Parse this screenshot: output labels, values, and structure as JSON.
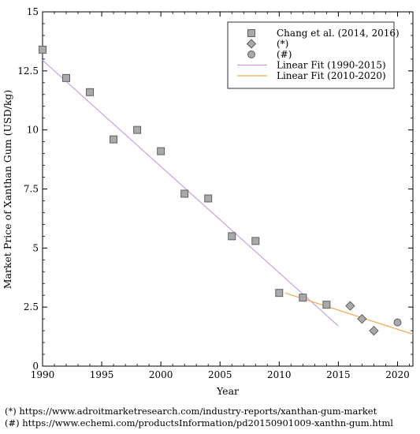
{
  "chart_data": {
    "type": "scatter",
    "title": "",
    "xlabel": "Year",
    "ylabel": "Market Price of Xanthan Gum (USD/kg)",
    "xlim": [
      1990,
      2021.3
    ],
    "ylim": [
      0,
      15
    ],
    "x_ticks": [
      1990,
      1995,
      2000,
      2005,
      2010,
      2015,
      2020
    ],
    "y_ticks": [
      0,
      2.5,
      5,
      7.5,
      10,
      12.5,
      15
    ],
    "y_tick_labels": [
      "0",
      "2.5",
      "5",
      "7.5",
      "10",
      "12.5",
      "15"
    ],
    "grid": false,
    "legend_position": "top-right",
    "series": [
      {
        "name": "Chang et al. (2014, 2016)",
        "marker": "square",
        "color": "#a9a9a9",
        "points": [
          [
            1990,
            13.4
          ],
          [
            1992,
            12.2
          ],
          [
            1994,
            11.6
          ],
          [
            1996,
            9.6
          ],
          [
            1998,
            10.0
          ],
          [
            2000,
            9.1
          ],
          [
            2002,
            7.3
          ],
          [
            2004,
            7.1
          ],
          [
            2006,
            5.5
          ],
          [
            2008,
            5.3
          ],
          [
            2010,
            3.1
          ],
          [
            2012,
            2.9
          ],
          [
            2014,
            2.6
          ]
        ]
      },
      {
        "name": "(*)",
        "marker": "diamond",
        "color": "#a9a9a9",
        "points": [
          [
            2016,
            2.55
          ],
          [
            2017,
            2.0
          ],
          [
            2018,
            1.5
          ]
        ]
      },
      {
        "name": "(#)",
        "marker": "circle",
        "color": "#a9a9a9",
        "points": [
          [
            2020,
            1.85
          ]
        ]
      }
    ],
    "fits": [
      {
        "name": "Linear Fit (1990-2015)",
        "color": "#c9a0dc",
        "points": [
          [
            1990,
            12.95
          ],
          [
            2015,
            1.7
          ]
        ]
      },
      {
        "name": "Linear Fit (2010-2020)",
        "color": "#f5a64a",
        "points": [
          [
            2010.5,
            3.1
          ],
          [
            2021.3,
            1.35
          ]
        ]
      }
    ]
  },
  "footnotes": [
    "(*) https://www.adroitmarketresearch.com/industry-reports/xanthan-gum-market",
    "(#) https://www.echemi.com/productsInformation/pd20150901009-xanthn-gum.html"
  ]
}
